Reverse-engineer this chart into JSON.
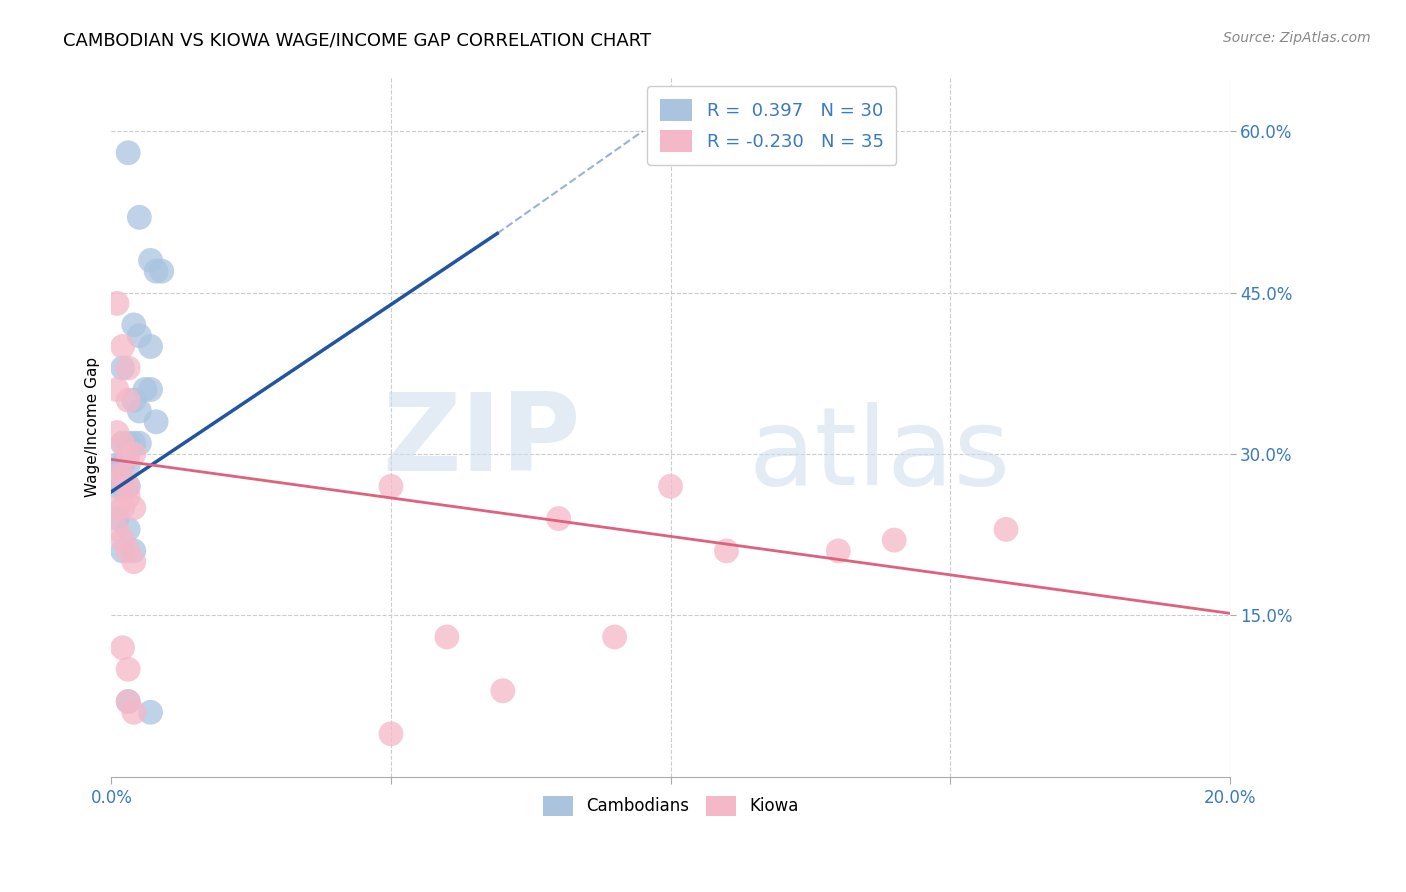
{
  "title": "CAMBODIAN VS KIOWA WAGE/INCOME GAP CORRELATION CHART",
  "source": "Source: ZipAtlas.com",
  "ylabel": "Wage/Income Gap",
  "xlim": [
    0.0,
    0.2
  ],
  "ylim": [
    0.0,
    0.65
  ],
  "ytick_values": [
    0.15,
    0.3,
    0.45,
    0.6
  ],
  "legend_r1": "R =  0.397",
  "legend_n1": "N = 30",
  "legend_r2": "R = -0.230",
  "legend_n2": "N = 35",
  "color_blue": "#aac4e0",
  "color_pink": "#f4b8c8",
  "line_blue": "#2255a0",
  "line_pink": "#e06080",
  "cambodian_points": [
    [
      0.003,
      0.58
    ],
    [
      0.005,
      0.52
    ],
    [
      0.007,
      0.48
    ],
    [
      0.008,
      0.47
    ],
    [
      0.009,
      0.47
    ],
    [
      0.004,
      0.42
    ],
    [
      0.005,
      0.41
    ],
    [
      0.007,
      0.4
    ],
    [
      0.002,
      0.38
    ],
    [
      0.006,
      0.36
    ],
    [
      0.007,
      0.36
    ],
    [
      0.004,
      0.35
    ],
    [
      0.005,
      0.34
    ],
    [
      0.008,
      0.33
    ],
    [
      0.002,
      0.31
    ],
    [
      0.003,
      0.31
    ],
    [
      0.004,
      0.31
    ],
    [
      0.005,
      0.31
    ],
    [
      0.001,
      0.29
    ],
    [
      0.002,
      0.29
    ],
    [
      0.003,
      0.29
    ],
    [
      0.001,
      0.27
    ],
    [
      0.002,
      0.27
    ],
    [
      0.003,
      0.27
    ],
    [
      0.001,
      0.24
    ],
    [
      0.003,
      0.23
    ],
    [
      0.002,
      0.21
    ],
    [
      0.004,
      0.21
    ],
    [
      0.003,
      0.07
    ],
    [
      0.007,
      0.06
    ]
  ],
  "kiowa_points": [
    [
      0.001,
      0.44
    ],
    [
      0.002,
      0.4
    ],
    [
      0.003,
      0.38
    ],
    [
      0.001,
      0.36
    ],
    [
      0.003,
      0.35
    ],
    [
      0.001,
      0.32
    ],
    [
      0.002,
      0.31
    ],
    [
      0.003,
      0.3
    ],
    [
      0.004,
      0.3
    ],
    [
      0.001,
      0.28
    ],
    [
      0.002,
      0.28
    ],
    [
      0.003,
      0.27
    ],
    [
      0.003,
      0.26
    ],
    [
      0.004,
      0.25
    ],
    [
      0.001,
      0.25
    ],
    [
      0.002,
      0.25
    ],
    [
      0.001,
      0.23
    ],
    [
      0.002,
      0.22
    ],
    [
      0.003,
      0.21
    ],
    [
      0.004,
      0.2
    ],
    [
      0.002,
      0.12
    ],
    [
      0.003,
      0.1
    ],
    [
      0.05,
      0.27
    ],
    [
      0.08,
      0.24
    ],
    [
      0.1,
      0.27
    ],
    [
      0.11,
      0.21
    ],
    [
      0.13,
      0.21
    ],
    [
      0.14,
      0.22
    ],
    [
      0.16,
      0.23
    ],
    [
      0.06,
      0.13
    ],
    [
      0.09,
      0.13
    ],
    [
      0.05,
      0.04
    ],
    [
      0.003,
      0.07
    ],
    [
      0.004,
      0.06
    ],
    [
      0.07,
      0.08
    ]
  ],
  "blue_line_solid": [
    [
      0.0,
      0.265
    ],
    [
      0.069,
      0.505
    ]
  ],
  "blue_line_dashed": [
    [
      0.069,
      0.505
    ],
    [
      0.095,
      0.6
    ]
  ],
  "pink_line": [
    [
      0.0,
      0.295
    ],
    [
      0.2,
      0.152
    ]
  ]
}
